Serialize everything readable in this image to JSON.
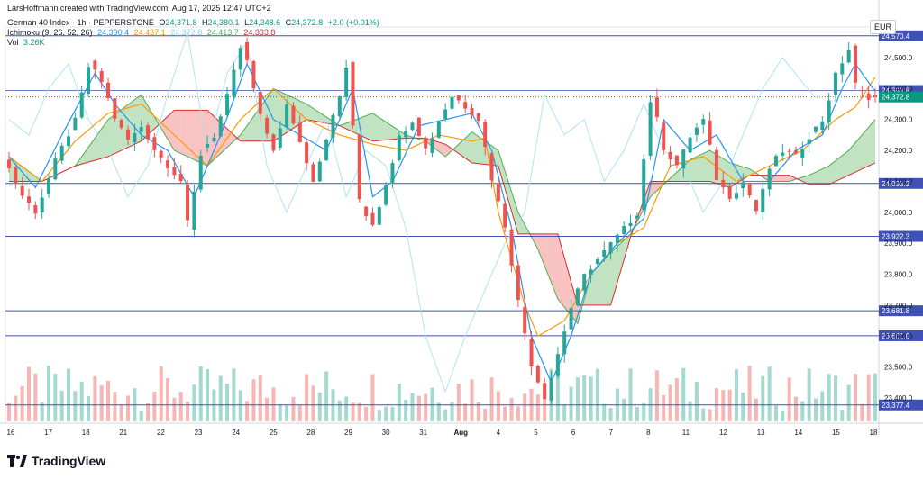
{
  "credit": "LarsHoffmann created with TradingView.com, Aug 17, 2025 12:47 UTC+2",
  "symbol": {
    "name": "German 40 Index · 1h · PEPPERSTONE",
    "o_label": "O",
    "o": "24,371.8",
    "h_label": "H",
    "h": "24,380.1",
    "l_label": "L",
    "l": "24,348.6",
    "c_label": "C",
    "c": "24,372.8",
    "chg": "+2.0 (+0.01%)"
  },
  "ichimoku": {
    "name": "Ichimoku (9, 26, 52, 26)",
    "v1": "24,390.4",
    "v2": "24,437.1",
    "v3": "24,372.8",
    "v4": "24,413.7",
    "v5": "24,333.8"
  },
  "volume": {
    "name": "Vol",
    "value": "3.26K"
  },
  "currency": "EUR",
  "logo_text": "TradingView",
  "colors": {
    "up": "#26a69a",
    "down": "#ef5350",
    "tenkan": "#2196f3",
    "kijun": "#ff9800",
    "chikou": "#aee4f2",
    "span_a": "#4caf50",
    "span_b": "#d32f2f",
    "level_line": "#3f51b5",
    "last_price": "#089981"
  },
  "chart_data": {
    "type": "candlestick",
    "timeframe": "1h",
    "ylim": [
      23320,
      24600
    ],
    "y_ticks": [
      "24,500.0",
      "24,400.0",
      "24,300.0",
      "24,200.0",
      "24,100.0",
      "24,000.0",
      "23,900.0",
      "23,800.0",
      "23,700.0",
      "23,600.0",
      "23,500.0",
      "23,400.0"
    ],
    "x_ticks": [
      "16",
      "17",
      "18",
      "21",
      "22",
      "23",
      "24",
      "25",
      "28",
      "29",
      "30",
      "31",
      "Aug",
      "4",
      "5",
      "6",
      "7",
      "8",
      "11",
      "12",
      "13",
      "14",
      "15",
      "18"
    ],
    "horizontal_levels": [
      {
        "value": 24570.4,
        "label": "24,570.4"
      },
      {
        "value": 24093.2,
        "label": "24,093.2"
      },
      {
        "value": 23922.3,
        "label": "23,922.3"
      },
      {
        "value": 23681.8,
        "label": "23,681.8"
      },
      {
        "value": 23601.0,
        "label": "23,601.0"
      },
      {
        "value": 23377.4,
        "label": "23,377.4"
      }
    ],
    "marked_prices": [
      {
        "value": 24393.8,
        "label": "24,393.8",
        "kind": "level"
      },
      {
        "value": 24372.8,
        "label": "24,372.8",
        "kind": "last"
      }
    ],
    "price_path": [
      [
        0,
        24180
      ],
      [
        3,
        24050
      ],
      [
        5,
        24000
      ],
      [
        8,
        24170
      ],
      [
        11,
        24300
      ],
      [
        13,
        24480
      ],
      [
        15,
        24420
      ],
      [
        17,
        24300
      ],
      [
        19,
        24230
      ],
      [
        21,
        24280
      ],
      [
        23,
        24200
      ],
      [
        25,
        24150
      ],
      [
        27,
        24100
      ],
      [
        28,
        23950
      ],
      [
        30,
        24200
      ],
      [
        32,
        24250
      ],
      [
        34,
        24380
      ],
      [
        36,
        24540
      ],
      [
        37,
        24480
      ],
      [
        39,
        24300
      ],
      [
        41,
        24200
      ],
      [
        43,
        24350
      ],
      [
        45,
        24220
      ],
      [
        47,
        24100
      ],
      [
        49,
        24250
      ],
      [
        51,
        24380
      ],
      [
        52,
        24480
      ],
      [
        54,
        24020
      ],
      [
        56,
        23960
      ],
      [
        58,
        24100
      ],
      [
        60,
        24250
      ],
      [
        62,
        24300
      ],
      [
        64,
        24200
      ],
      [
        66,
        24300
      ],
      [
        68,
        24380
      ],
      [
        70,
        24340
      ],
      [
        72,
        24300
      ],
      [
        74,
        24100
      ],
      [
        76,
        23950
      ],
      [
        78,
        23700
      ],
      [
        80,
        23500
      ],
      [
        82,
        23400
      ],
      [
        84,
        23550
      ],
      [
        86,
        23700
      ],
      [
        88,
        23800
      ],
      [
        90,
        23850
      ],
      [
        92,
        23900
      ],
      [
        94,
        23950
      ],
      [
        96,
        24000
      ],
      [
        98,
        24380
      ],
      [
        100,
        24200
      ],
      [
        102,
        24150
      ],
      [
        104,
        24250
      ],
      [
        106,
        24300
      ],
      [
        108,
        24100
      ],
      [
        110,
        24050
      ],
      [
        112,
        24100
      ],
      [
        114,
        24000
      ],
      [
        116,
        24150
      ],
      [
        118,
        24200
      ],
      [
        120,
        24180
      ],
      [
        122,
        24250
      ],
      [
        124,
        24300
      ],
      [
        126,
        24450
      ],
      [
        128,
        24530
      ],
      [
        129,
        24400
      ],
      [
        131,
        24372
      ]
    ],
    "kijun_path": [
      [
        0,
        24180
      ],
      [
        5,
        24100
      ],
      [
        10,
        24230
      ],
      [
        15,
        24320
      ],
      [
        20,
        24350
      ],
      [
        25,
        24250
      ],
      [
        30,
        24150
      ],
      [
        35,
        24300
      ],
      [
        40,
        24400
      ],
      [
        45,
        24300
      ],
      [
        50,
        24250
      ],
      [
        55,
        24220
      ],
      [
        60,
        24200
      ],
      [
        65,
        24250
      ],
      [
        70,
        24230
      ],
      [
        72,
        24240
      ],
      [
        74,
        24000
      ],
      [
        76,
        23850
      ],
      [
        78,
        23700
      ],
      [
        80,
        23600
      ],
      [
        84,
        23650
      ],
      [
        88,
        23800
      ],
      [
        92,
        23900
      ],
      [
        96,
        23950
      ],
      [
        100,
        24150
      ],
      [
        105,
        24180
      ],
      [
        110,
        24100
      ],
      [
        115,
        24150
      ],
      [
        120,
        24200
      ],
      [
        125,
        24300
      ],
      [
        128,
        24340
      ],
      [
        131,
        24437
      ]
    ],
    "tenkan_path": [
      [
        0,
        24180
      ],
      [
        4,
        24080
      ],
      [
        8,
        24250
      ],
      [
        13,
        24450
      ],
      [
        16,
        24350
      ],
      [
        20,
        24250
      ],
      [
        24,
        24200
      ],
      [
        28,
        24050
      ],
      [
        32,
        24250
      ],
      [
        36,
        24480
      ],
      [
        40,
        24300
      ],
      [
        44,
        24250
      ],
      [
        48,
        24200
      ],
      [
        52,
        24400
      ],
      [
        55,
        24050
      ],
      [
        58,
        24100
      ],
      [
        62,
        24280
      ],
      [
        66,
        24300
      ],
      [
        70,
        24320
      ],
      [
        73,
        24200
      ],
      [
        76,
        23950
      ],
      [
        79,
        23600
      ],
      [
        82,
        23450
      ],
      [
        85,
        23600
      ],
      [
        88,
        23800
      ],
      [
        92,
        23900
      ],
      [
        96,
        23980
      ],
      [
        99,
        24300
      ],
      [
        103,
        24200
      ],
      [
        107,
        24250
      ],
      [
        111,
        24100
      ],
      [
        115,
        24100
      ],
      [
        119,
        24200
      ],
      [
        123,
        24250
      ],
      [
        126,
        24400
      ],
      [
        128,
        24480
      ],
      [
        131,
        24390
      ]
    ],
    "chikou_path": [
      [
        0,
        24300
      ],
      [
        3,
        24250
      ],
      [
        6,
        24400
      ],
      [
        9,
        24480
      ],
      [
        12,
        24300
      ],
      [
        15,
        24200
      ],
      [
        18,
        24050
      ],
      [
        21,
        24150
      ],
      [
        24,
        24380
      ],
      [
        27,
        24580
      ],
      [
        30,
        24200
      ],
      [
        33,
        24450
      ],
      [
        36,
        24550
      ],
      [
        39,
        24150
      ],
      [
        42,
        24000
      ],
      [
        45,
        24150
      ],
      [
        48,
        24300
      ],
      [
        51,
        24050
      ],
      [
        54,
        24200
      ],
      [
        57,
        24150
      ],
      [
        60,
        23950
      ],
      [
        63,
        23600
      ],
      [
        66,
        23420
      ],
      [
        69,
        23600
      ],
      [
        72,
        23750
      ],
      [
        75,
        23900
      ],
      [
        78,
        24000
      ],
      [
        81,
        24380
      ],
      [
        84,
        24250
      ],
      [
        87,
        24300
      ],
      [
        90,
        24100
      ],
      [
        93,
        24200
      ],
      [
        96,
        24350
      ],
      [
        99,
        24200
      ],
      [
        102,
        24150
      ],
      [
        105,
        24000
      ],
      [
        108,
        24100
      ],
      [
        111,
        24250
      ],
      [
        114,
        24400
      ],
      [
        117,
        24500
      ],
      [
        120,
        24420
      ],
      [
        122,
        24370
      ]
    ],
    "span_a_path": [
      [
        0,
        24180
      ],
      [
        5,
        24100
      ],
      [
        10,
        24150
      ],
      [
        15,
        24300
      ],
      [
        20,
        24380
      ],
      [
        25,
        24200
      ],
      [
        30,
        24150
      ],
      [
        35,
        24250
      ],
      [
        40,
        24400
      ],
      [
        45,
        24350
      ],
      [
        50,
        24280
      ],
      [
        55,
        24320
      ],
      [
        60,
        24250
      ],
      [
        63,
        24230
      ],
      [
        66,
        24180
      ],
      [
        70,
        24260
      ],
      [
        74,
        24200
      ],
      [
        77,
        24000
      ],
      [
        80,
        23880
      ],
      [
        83,
        23720
      ],
      [
        86,
        23640
      ],
      [
        88,
        23800
      ],
      [
        91,
        23870
      ],
      [
        94,
        23930
      ],
      [
        97,
        24050
      ],
      [
        100,
        24110
      ],
      [
        103,
        24170
      ],
      [
        106,
        24200
      ],
      [
        109,
        24160
      ],
      [
        112,
        24140
      ],
      [
        115,
        24100
      ],
      [
        118,
        24100
      ],
      [
        121,
        24120
      ],
      [
        124,
        24150
      ],
      [
        127,
        24200
      ],
      [
        131,
        24300
      ]
    ],
    "span_b_path": [
      [
        0,
        24100
      ],
      [
        5,
        24100
      ],
      [
        10,
        24150
      ],
      [
        15,
        24180
      ],
      [
        20,
        24230
      ],
      [
        25,
        24330
      ],
      [
        30,
        24330
      ],
      [
        35,
        24230
      ],
      [
        40,
        24230
      ],
      [
        45,
        24300
      ],
      [
        50,
        24280
      ],
      [
        55,
        24230
      ],
      [
        60,
        24240
      ],
      [
        63,
        24240
      ],
      [
        66,
        24220
      ],
      [
        70,
        24160
      ],
      [
        74,
        24150
      ],
      [
        77,
        23930
      ],
      [
        80,
        23930
      ],
      [
        83,
        23930
      ],
      [
        86,
        23700
      ],
      [
        88,
        23700
      ],
      [
        91,
        23700
      ],
      [
        94,
        23920
      ],
      [
        97,
        24100
      ],
      [
        100,
        24100
      ],
      [
        103,
        24100
      ],
      [
        106,
        24100
      ],
      [
        109,
        24080
      ],
      [
        112,
        24120
      ],
      [
        115,
        24120
      ],
      [
        118,
        24120
      ],
      [
        121,
        24090
      ],
      [
        124,
        24090
      ],
      [
        127,
        24120
      ],
      [
        131,
        24160
      ]
    ]
  }
}
